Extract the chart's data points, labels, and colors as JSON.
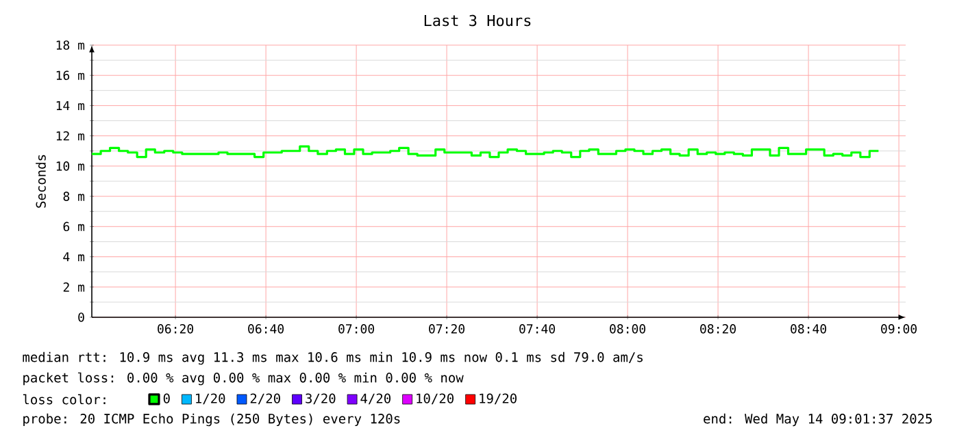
{
  "chart_data": {
    "type": "step",
    "title": "Last 3 Hours",
    "ylabel": "Seconds",
    "xlim": [
      6.025,
      9.025
    ],
    "ylim": [
      0,
      18
    ],
    "xticks": [
      {
        "value": 6.3333,
        "label": "06:20"
      },
      {
        "value": 6.6667,
        "label": "06:40"
      },
      {
        "value": 7,
        "label": "07:00"
      },
      {
        "value": 7.3333,
        "label": "07:20"
      },
      {
        "value": 7.6667,
        "label": "07:40"
      },
      {
        "value": 8,
        "label": "08:00"
      },
      {
        "value": 8.3333,
        "label": "08:20"
      },
      {
        "value": 8.6667,
        "label": "08:40"
      },
      {
        "value": 9,
        "label": "09:00"
      }
    ],
    "yticks": [
      {
        "value": 0,
        "label": "0"
      },
      {
        "value": 2,
        "label": "2 m"
      },
      {
        "value": 4,
        "label": "4 m"
      },
      {
        "value": 6,
        "label": "6 m"
      },
      {
        "value": 8,
        "label": "8 m"
      },
      {
        "value": 10,
        "label": "10 m"
      },
      {
        "value": 12,
        "label": "12 m"
      },
      {
        "value": 14,
        "label": "14 m"
      },
      {
        "value": 16,
        "label": "16 m"
      },
      {
        "value": 18,
        "label": "18 m"
      }
    ],
    "grid": true,
    "legend": "bottom",
    "legend_title": "loss color:",
    "x": [
      6.025,
      6.058,
      6.092,
      6.125,
      6.158,
      6.192,
      6.225,
      6.258,
      6.292,
      6.325,
      6.358,
      6.392,
      6.425,
      6.458,
      6.492,
      6.525,
      6.558,
      6.592,
      6.625,
      6.658,
      6.692,
      6.725,
      6.758,
      6.792,
      6.825,
      6.858,
      6.892,
      6.925,
      6.958,
      6.992,
      7.025,
      7.058,
      7.092,
      7.125,
      7.158,
      7.192,
      7.225,
      7.258,
      7.292,
      7.325,
      7.358,
      7.392,
      7.425,
      7.458,
      7.492,
      7.525,
      7.558,
      7.592,
      7.625,
      7.658,
      7.692,
      7.725,
      7.758,
      7.792,
      7.825,
      7.858,
      7.892,
      7.925,
      7.958,
      7.992,
      8.025,
      8.058,
      8.092,
      8.125,
      8.158,
      8.192,
      8.225,
      8.258,
      8.292,
      8.325,
      8.358,
      8.392,
      8.425,
      8.458,
      8.492,
      8.525,
      8.558,
      8.592,
      8.625,
      8.658,
      8.692,
      8.725,
      8.758,
      8.792,
      8.825,
      8.858,
      8.892,
      8.925
    ],
    "series": [
      {
        "name": "0",
        "color": "#00ff00",
        "values": [
          10.8,
          11.0,
          11.2,
          11.0,
          10.9,
          10.6,
          11.1,
          10.9,
          11.0,
          10.9,
          10.8,
          10.8,
          10.8,
          10.8,
          10.9,
          10.8,
          10.8,
          10.8,
          10.6,
          10.9,
          10.9,
          11.0,
          11.0,
          11.3,
          11.0,
          10.8,
          11.0,
          11.1,
          10.8,
          11.1,
          10.8,
          10.9,
          10.9,
          11.0,
          11.2,
          10.8,
          10.7,
          10.7,
          11.1,
          10.9,
          10.9,
          10.9,
          10.7,
          10.9,
          10.6,
          10.9,
          11.1,
          11.0,
          10.8,
          10.8,
          10.9,
          11.0,
          10.9,
          10.6,
          11.0,
          11.1,
          10.8,
          10.8,
          11.0,
          11.1,
          11.0,
          10.8,
          11.0,
          11.1,
          10.8,
          10.7,
          11.1,
          10.8,
          10.9,
          10.8,
          10.9,
          10.8,
          10.7,
          11.1,
          11.1,
          10.7,
          11.2,
          10.8,
          10.8,
          11.1,
          11.1,
          10.7,
          10.8,
          10.7,
          10.9,
          10.6,
          11.0,
          11.0
        ]
      },
      {
        "name": "1/20",
        "color": "#00b8ff",
        "values": [
          null,
          null,
          null,
          null,
          null,
          null,
          null,
          null,
          null,
          null,
          null,
          null,
          null,
          null,
          null,
          null,
          null,
          null,
          null,
          null,
          null,
          null,
          null,
          null,
          null,
          null,
          null,
          null,
          null,
          null,
          null,
          null,
          null,
          null,
          null,
          null,
          null,
          null,
          null,
          null,
          null,
          null,
          null,
          null,
          null,
          null,
          null,
          null,
          null,
          null,
          null,
          null,
          null,
          null,
          null,
          null,
          null,
          null,
          null,
          null,
          null,
          null,
          null,
          null,
          null,
          null,
          null,
          null,
          null,
          null,
          null,
          null,
          null,
          null,
          null,
          null,
          null,
          null,
          null,
          null,
          null,
          null,
          null,
          null,
          null,
          null,
          null,
          null
        ]
      },
      {
        "name": "2/20",
        "color": "#0059ff",
        "values": [
          null,
          null,
          null,
          null,
          null,
          null,
          null,
          null,
          null,
          null,
          null,
          null,
          null,
          null,
          null,
          null,
          null,
          null,
          null,
          null,
          null,
          null,
          null,
          null,
          null,
          null,
          null,
          null,
          null,
          null,
          null,
          null,
          null,
          null,
          null,
          null,
          null,
          null,
          null,
          null,
          null,
          null,
          null,
          null,
          null,
          null,
          null,
          null,
          null,
          null,
          null,
          null,
          null,
          null,
          null,
          null,
          null,
          null,
          null,
          null,
          null,
          null,
          null,
          null,
          null,
          null,
          null,
          null,
          null,
          null,
          null,
          null,
          null,
          null,
          null,
          null,
          null,
          null,
          null,
          null,
          null,
          null,
          null,
          null,
          null,
          null,
          null,
          null
        ]
      },
      {
        "name": "3/20",
        "color": "#5e00ff",
        "values": [
          null,
          null,
          null,
          null,
          null,
          null,
          null,
          null,
          null,
          null,
          null,
          null,
          null,
          null,
          null,
          null,
          null,
          null,
          null,
          null,
          null,
          null,
          null,
          null,
          null,
          null,
          null,
          null,
          null,
          null,
          null,
          null,
          null,
          null,
          null,
          null,
          null,
          null,
          null,
          null,
          null,
          null,
          null,
          null,
          null,
          null,
          null,
          null,
          null,
          null,
          null,
          null,
          null,
          null,
          null,
          null,
          null,
          null,
          null,
          null,
          null,
          null,
          null,
          null,
          null,
          null,
          null,
          null,
          null,
          null,
          null,
          null,
          null,
          null,
          null,
          null,
          null,
          null,
          null,
          null,
          null,
          null,
          null,
          null,
          null,
          null,
          null,
          null
        ]
      },
      {
        "name": "4/20",
        "color": "#7e00ff",
        "values": [
          null,
          null,
          null,
          null,
          null,
          null,
          null,
          null,
          null,
          null,
          null,
          null,
          null,
          null,
          null,
          null,
          null,
          null,
          null,
          null,
          null,
          null,
          null,
          null,
          null,
          null,
          null,
          null,
          null,
          null,
          null,
          null,
          null,
          null,
          null,
          null,
          null,
          null,
          null,
          null,
          null,
          null,
          null,
          null,
          null,
          null,
          null,
          null,
          null,
          null,
          null,
          null,
          null,
          null,
          null,
          null,
          null,
          null,
          null,
          null,
          null,
          null,
          null,
          null,
          null,
          null,
          null,
          null,
          null,
          null,
          null,
          null,
          null,
          null,
          null,
          null,
          null,
          null,
          null,
          null,
          null,
          null,
          null,
          null,
          null,
          null,
          null,
          null
        ]
      },
      {
        "name": "10/20",
        "color": "#dd00ff",
        "values": [
          null,
          null,
          null,
          null,
          null,
          null,
          null,
          null,
          null,
          null,
          null,
          null,
          null,
          null,
          null,
          null,
          null,
          null,
          null,
          null,
          null,
          null,
          null,
          null,
          null,
          null,
          null,
          null,
          null,
          null,
          null,
          null,
          null,
          null,
          null,
          null,
          null,
          null,
          null,
          null,
          null,
          null,
          null,
          null,
          null,
          null,
          null,
          null,
          null,
          null,
          null,
          null,
          null,
          null,
          null,
          null,
          null,
          null,
          null,
          null,
          null,
          null,
          null,
          null,
          null,
          null,
          null,
          null,
          null,
          null,
          null,
          null,
          null,
          null,
          null,
          null,
          null,
          null,
          null,
          null,
          null,
          null,
          null,
          null,
          null,
          null,
          null,
          null
        ]
      },
      {
        "name": "19/20",
        "color": "#ff0000",
        "values": [
          null,
          null,
          null,
          null,
          null,
          null,
          null,
          null,
          null,
          null,
          null,
          null,
          null,
          null,
          null,
          null,
          null,
          null,
          null,
          null,
          null,
          null,
          null,
          null,
          null,
          null,
          null,
          null,
          null,
          null,
          null,
          null,
          null,
          null,
          null,
          null,
          null,
          null,
          null,
          null,
          null,
          null,
          null,
          null,
          null,
          null,
          null,
          null,
          null,
          null,
          null,
          null,
          null,
          null,
          null,
          null,
          null,
          null,
          null,
          null,
          null,
          null,
          null,
          null,
          null,
          null,
          null,
          null,
          null,
          null,
          null,
          null,
          null,
          null,
          null,
          null,
          null,
          null,
          null,
          null,
          null,
          null,
          null,
          null,
          null,
          null,
          null,
          null
        ]
      }
    ],
    "annotations": [
      "median rtt:  10.9 ms avg  11.3 ms max  10.6 ms min  10.9 ms now  0.1 ms sd  79.0   am/s",
      "packet loss: 0.00 % avg  0.00 % max  0.00 % min  0.00 % now",
      "probe:        20 ICMP Echo Pings (250 Bytes) every 120s",
      "end: Wed May 14 09:01:37 2025"
    ]
  }
}
